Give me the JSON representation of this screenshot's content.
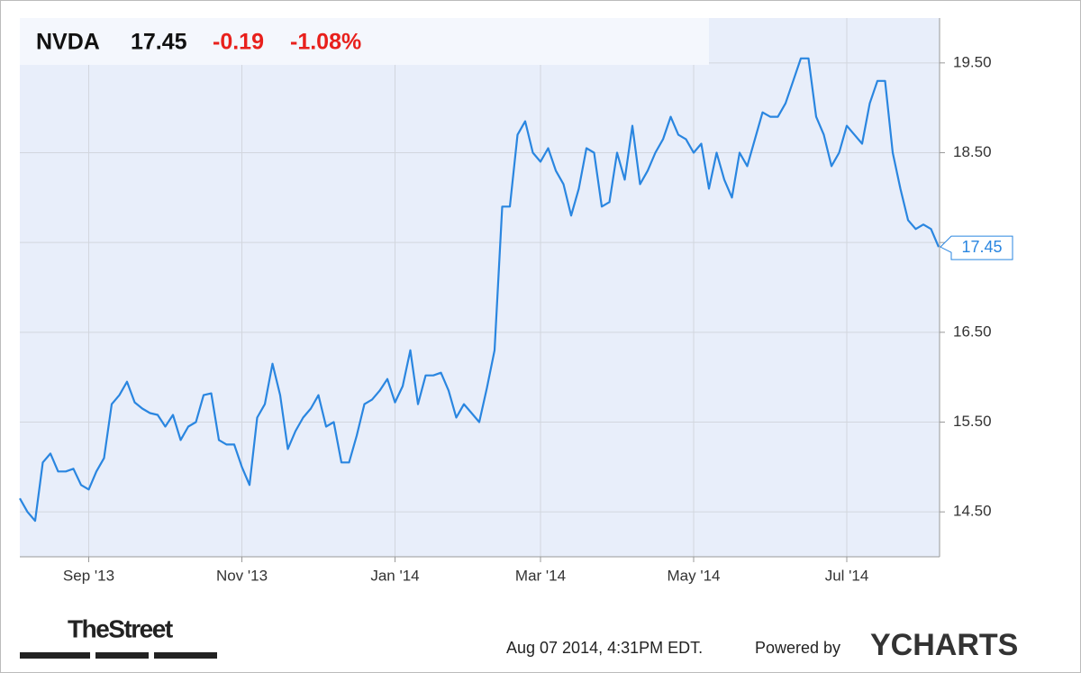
{
  "header": {
    "symbol": "NVDA",
    "change": "-0.19",
    "change_pct": "-1.08%"
  },
  "chart_data": {
    "type": "line",
    "color": "#2a86e0",
    "grid": true,
    "categories": [
      null,
      null,
      null,
      null,
      null,
      null,
      null,
      null,
      null,
      "Sep '13",
      null,
      null,
      null,
      null,
      null,
      null,
      null,
      null,
      null,
      null,
      null,
      null,
      null,
      null,
      null,
      null,
      null,
      null,
      null,
      "Nov '13",
      null,
      null,
      null,
      null,
      null,
      null,
      null,
      null,
      null,
      null,
      null,
      null,
      null,
      null,
      null,
      null,
      null,
      null,
      null,
      "Jan '14",
      null,
      null,
      null,
      null,
      null,
      null,
      null,
      null,
      null,
      null,
      null,
      null,
      null,
      null,
      null,
      null,
      null,
      null,
      "Mar '14",
      null,
      null,
      null,
      null,
      null,
      null,
      null,
      null,
      null,
      null,
      null,
      null,
      null,
      null,
      null,
      null,
      null,
      null,
      null,
      "May '14",
      null,
      null,
      null,
      null,
      null,
      null,
      null,
      null,
      null,
      null,
      null,
      null,
      null,
      null,
      null,
      null,
      null,
      null,
      null,
      "Jul '14",
      null,
      null,
      null,
      null,
      null,
      null,
      null,
      null,
      null,
      null,
      null,
      null
    ],
    "values": [
      14.65,
      14.5,
      14.4,
      15.05,
      15.15,
      14.95,
      14.95,
      14.98,
      14.8,
      14.75,
      14.95,
      15.1,
      15.7,
      15.8,
      15.95,
      15.72,
      15.65,
      15.6,
      15.58,
      15.45,
      15.58,
      15.3,
      15.45,
      15.5,
      15.8,
      15.82,
      15.3,
      15.25,
      15.25,
      15.0,
      14.8,
      15.55,
      15.7,
      16.15,
      15.8,
      15.2,
      15.4,
      15.55,
      15.65,
      15.8,
      15.45,
      15.5,
      15.05,
      15.05,
      15.35,
      15.7,
      15.75,
      15.85,
      15.98,
      15.72,
      15.9,
      16.3,
      15.7,
      16.02,
      16.02,
      16.05,
      15.85,
      15.55,
      15.7,
      15.6,
      15.5,
      15.88,
      16.3,
      17.9,
      17.9,
      18.7,
      18.85,
      18.5,
      18.4,
      18.55,
      18.3,
      18.15,
      17.8,
      18.1,
      18.55,
      18.5,
      17.9,
      17.95,
      18.5,
      18.2,
      18.8,
      18.15,
      18.3,
      18.5,
      18.65,
      18.9,
      18.7,
      18.65,
      18.5,
      18.6,
      18.1,
      18.5,
      18.2,
      18.0,
      18.5,
      18.35,
      18.65,
      18.95,
      18.9,
      18.9,
      19.05,
      19.3,
      19.55,
      19.55,
      18.9,
      18.7,
      18.35,
      18.5,
      18.8,
      18.7,
      18.6,
      19.05,
      19.3,
      19.3,
      18.5,
      18.1,
      17.75,
      17.65,
      17.7,
      17.65,
      17.45
    ],
    "ylim": [
      14,
      20
    ],
    "yticks": [
      {
        "value": 14.5,
        "label": "14.50"
      },
      {
        "value": 15.5,
        "label": "15.50"
      },
      {
        "value": 16.5,
        "label": "16.50"
      },
      {
        "value": 17.5,
        "label": null
      },
      {
        "value": 18.5,
        "label": "18.50"
      },
      {
        "value": 19.5,
        "label": "19.50"
      }
    ]
  },
  "footer": {
    "timestamp": "Aug 07 2014, 4:31PM EDT.",
    "powered_by": "Powered by",
    "brand": "YCHARTS",
    "source": "TheStreet"
  }
}
